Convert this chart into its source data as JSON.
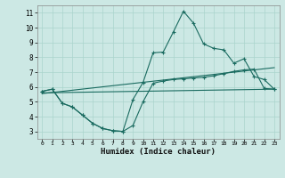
{
  "xlabel": "Humidex (Indice chaleur)",
  "background_color": "#cce8e4",
  "grid_color": "#aad4cc",
  "line_color": "#1a6b60",
  "xlim": [
    -0.5,
    23.5
  ],
  "ylim": [
    2.5,
    11.5
  ],
  "x_ticks": [
    0,
    1,
    2,
    3,
    4,
    5,
    6,
    7,
    8,
    9,
    10,
    11,
    12,
    13,
    14,
    15,
    16,
    17,
    18,
    19,
    20,
    21,
    22,
    23
  ],
  "y_ticks": [
    3,
    4,
    5,
    6,
    7,
    8,
    9,
    10,
    11
  ],
  "curve_peak_x": [
    0,
    1,
    2,
    3,
    4,
    5,
    6,
    7,
    8,
    9,
    10,
    11,
    12,
    13,
    14,
    15,
    16,
    17,
    18,
    19,
    20,
    21,
    22,
    23
  ],
  "curve_peak_y": [
    5.7,
    5.85,
    4.9,
    4.65,
    4.1,
    3.55,
    3.2,
    3.05,
    3.0,
    5.15,
    6.3,
    8.3,
    8.35,
    9.7,
    11.1,
    10.3,
    8.9,
    8.6,
    8.5,
    7.6,
    7.9,
    6.7,
    6.5,
    5.85
  ],
  "curve_lower_x": [
    0,
    1,
    2,
    3,
    4,
    5,
    6,
    7,
    8,
    9,
    10,
    11,
    12,
    13,
    14,
    15,
    16,
    17,
    18,
    19,
    20,
    21,
    22,
    23
  ],
  "curve_lower_y": [
    5.7,
    5.85,
    4.9,
    4.65,
    4.1,
    3.55,
    3.2,
    3.05,
    3.0,
    3.4,
    5.0,
    6.25,
    6.4,
    6.5,
    6.55,
    6.6,
    6.65,
    6.75,
    6.9,
    7.05,
    7.15,
    7.2,
    5.9,
    5.85
  ],
  "diag_line1_x": [
    0,
    23
  ],
  "diag_line1_y": [
    5.55,
    7.3
  ],
  "diag_line2_x": [
    0,
    23
  ],
  "diag_line2_y": [
    5.6,
    5.85
  ]
}
